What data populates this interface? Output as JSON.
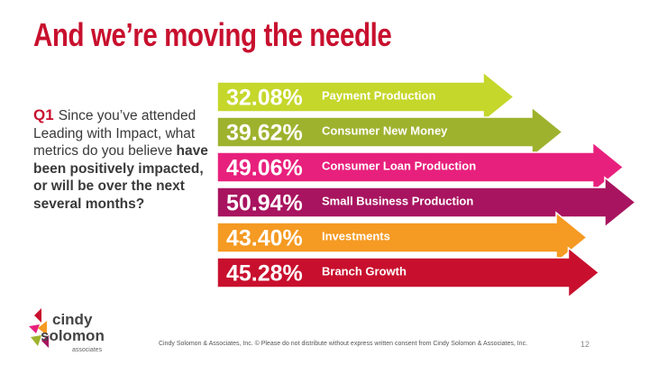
{
  "slide": {
    "title": "And we’re moving the needle",
    "question": {
      "number": "Q1",
      "text_plain": "Since you’ve attended Leading with Impact, what metrics do you believe ",
      "text_bold": "have been positively impacted, or will be over the next several months?"
    },
    "logo": {
      "line1": "cindy",
      "line2": "solomon",
      "line3": "associates"
    },
    "footer": "Cindy Solomon & Associates, Inc.  © Please do not distribute without express written consent from Cindy Solomon & Associates, Inc.",
    "page_number": "12"
  },
  "chart_data": {
    "type": "bar",
    "orientation": "horizontal",
    "categories": [
      "Payment Production",
      "Consumer New Money",
      "Consumer Loan Production",
      "Small Business Production",
      "Investments",
      "Branch Growth"
    ],
    "values": [
      32.08,
      39.62,
      49.06,
      50.94,
      43.4,
      45.28
    ],
    "value_labels": [
      "32.08%",
      "39.62%",
      "49.06%",
      "50.94%",
      "43.40%",
      "45.28%"
    ],
    "colors": [
      "#c5d72b",
      "#9fb22e",
      "#e8207d",
      "#a8145f",
      "#f59a22",
      "#c8102e"
    ],
    "title": "",
    "xlabel": "",
    "ylabel": ""
  }
}
